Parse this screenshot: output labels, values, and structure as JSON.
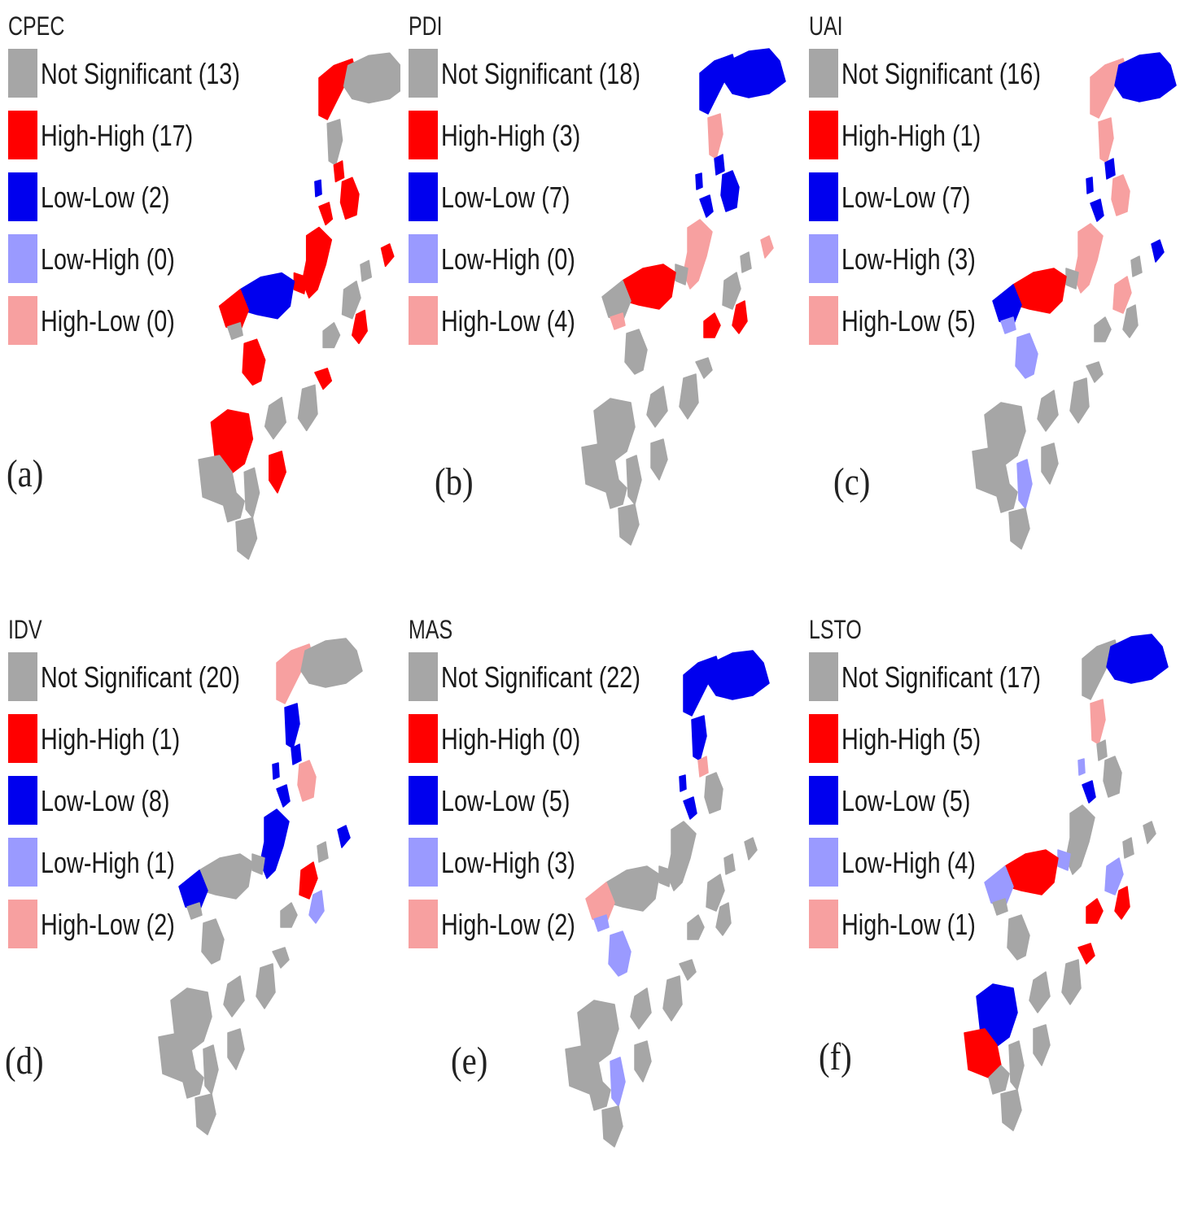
{
  "colors": {
    "not_significant": "#a6a6a6",
    "high_high": "#ff0000",
    "low_low": "#0000ee",
    "low_high": "#9a9aff",
    "high_low": "#f7a0a0"
  },
  "panels": [
    {
      "title": "CPEC",
      "label": "(a)",
      "legend": [
        {
          "key": "not_significant",
          "text": "Not Significant (13)"
        },
        {
          "key": "high_high",
          "text": "High-High (17)"
        },
        {
          "key": "low_low",
          "text": "Low-Low (2)"
        },
        {
          "key": "low_high",
          "text": "Low-High (0)"
        },
        {
          "key": "high_low",
          "text": "High-Low (0)"
        }
      ],
      "regions": [
        "high_high",
        "not_significant",
        "not_significant",
        "high_high",
        "low_low",
        "high_high",
        "high_high",
        "high_high",
        "high_high",
        "high_high",
        "low_low",
        "high_high",
        "not_significant",
        "not_significant",
        "high_high",
        "not_significant",
        "not_significant",
        "high_high",
        "high_high",
        "not_significant",
        "not_significant",
        "high_high",
        "not_significant",
        "not_significant",
        "not_significant",
        "high_high",
        "not_significant"
      ]
    },
    {
      "title": "PDI",
      "label": "(b)",
      "legend": [
        {
          "key": "not_significant",
          "text": "Not Significant (18)"
        },
        {
          "key": "high_high",
          "text": "High-High (3)"
        },
        {
          "key": "low_low",
          "text": "Low-Low (7)"
        },
        {
          "key": "low_high",
          "text": "Low-High (0)"
        },
        {
          "key": "high_low",
          "text": "High-Low (4)"
        }
      ],
      "regions": [
        "low_low",
        "low_low",
        "high_low",
        "low_low",
        "low_low",
        "low_low",
        "low_low",
        "high_low",
        "high_low",
        "not_significant",
        "high_high",
        "not_significant",
        "high_low",
        "not_significant",
        "high_high",
        "not_significant",
        "high_high",
        "not_significant",
        "not_significant",
        "not_significant",
        "not_significant",
        "not_significant",
        "not_significant",
        "not_significant",
        "not_significant",
        "not_significant",
        "not_significant"
      ]
    },
    {
      "title": "UAI",
      "label": "(c)",
      "legend": [
        {
          "key": "not_significant",
          "text": "Not Significant (16)"
        },
        {
          "key": "high_high",
          "text": "High-High (1)"
        },
        {
          "key": "low_low",
          "text": "Low-Low (7)"
        },
        {
          "key": "low_high",
          "text": "Low-High (3)"
        },
        {
          "key": "high_low",
          "text": "High-Low (5)"
        }
      ],
      "regions": [
        "high_low",
        "low_low",
        "high_low",
        "low_low",
        "low_low",
        "high_low",
        "low_low",
        "low_low",
        "high_low",
        "not_significant",
        "high_high",
        "low_low",
        "low_high",
        "high_low",
        "not_significant",
        "not_significant",
        "not_significant",
        "low_high",
        "not_significant",
        "not_significant",
        "not_significant",
        "not_significant",
        "not_significant",
        "not_significant",
        "low_high",
        "not_significant",
        "not_significant"
      ]
    },
    {
      "title": "IDV",
      "label": "(d)",
      "legend": [
        {
          "key": "not_significant",
          "text": "Not Significant (20)"
        },
        {
          "key": "high_high",
          "text": "High-High (1)"
        },
        {
          "key": "low_low",
          "text": "Low-Low (8)"
        },
        {
          "key": "low_high",
          "text": "Low-High (1)"
        },
        {
          "key": "high_low",
          "text": "High-Low (2)"
        }
      ],
      "regions": [
        "high_low",
        "not_significant",
        "low_low",
        "low_low",
        "low_low",
        "high_low",
        "low_low",
        "low_low",
        "low_low",
        "not_significant",
        "not_significant",
        "low_low",
        "not_significant",
        "high_high",
        "low_high",
        "not_significant",
        "not_significant",
        "not_significant",
        "not_significant",
        "not_significant",
        "not_significant",
        "not_significant",
        "not_significant",
        "not_significant",
        "not_significant",
        "not_significant",
        "not_significant"
      ]
    },
    {
      "title": "MAS",
      "label": "(e)",
      "legend": [
        {
          "key": "not_significant",
          "text": "Not Significant (22)"
        },
        {
          "key": "high_high",
          "text": "High-High (0)"
        },
        {
          "key": "low_low",
          "text": "Low-Low (5)"
        },
        {
          "key": "low_high",
          "text": "Low-High (3)"
        },
        {
          "key": "high_low",
          "text": "High-Low (2)"
        }
      ],
      "regions": [
        "low_low",
        "low_low",
        "low_low",
        "high_low",
        "low_low",
        "not_significant",
        "low_low",
        "not_significant",
        "not_significant",
        "not_significant",
        "not_significant",
        "high_low",
        "low_high",
        "not_significant",
        "not_significant",
        "not_significant",
        "not_significant",
        "low_high",
        "not_significant",
        "not_significant",
        "not_significant",
        "not_significant",
        "not_significant",
        "not_significant",
        "low_high",
        "not_significant",
        "not_significant"
      ]
    },
    {
      "title": "LSTO",
      "label": "(f)",
      "legend": [
        {
          "key": "not_significant",
          "text": "Not Significant (17)"
        },
        {
          "key": "high_high",
          "text": "High-High (5)"
        },
        {
          "key": "low_low",
          "text": "Low-Low (5)"
        },
        {
          "key": "low_high",
          "text": "Low-High (4)"
        },
        {
          "key": "high_low",
          "text": "High-Low (1)"
        }
      ],
      "regions": [
        "not_significant",
        "low_low",
        "high_low",
        "not_significant",
        "low_high",
        "not_significant",
        "low_low",
        "not_significant",
        "not_significant",
        "low_high",
        "high_high",
        "low_high",
        "not_significant",
        "low_high",
        "high_high",
        "not_significant",
        "high_high",
        "not_significant",
        "high_high",
        "not_significant",
        "not_significant",
        "low_low",
        "high_high",
        "not_significant",
        "not_significant",
        "not_significant",
        "not_significant"
      ]
    }
  ]
}
